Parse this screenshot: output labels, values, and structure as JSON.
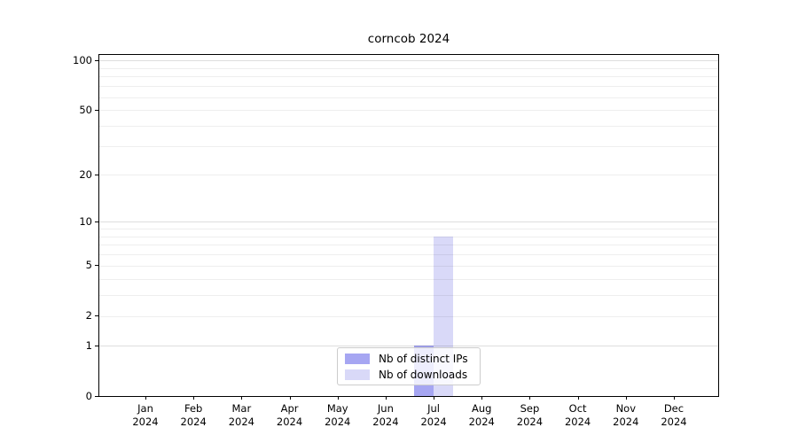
{
  "title": "corncob 2024",
  "chart_data": {
    "type": "bar",
    "categories": [
      "Jan 2024",
      "Feb 2024",
      "Mar 2024",
      "Apr 2024",
      "May 2024",
      "Jun 2024",
      "Jul 2024",
      "Aug 2024",
      "Sep 2024",
      "Oct 2024",
      "Nov 2024",
      "Dec 2024"
    ],
    "series": [
      {
        "name": "Nb of distinct IPs",
        "color": "#a6a6f2",
        "values": [
          0,
          0,
          0,
          0,
          0,
          0,
          1,
          0,
          0,
          0,
          0,
          0
        ]
      },
      {
        "name": "Nb of downloads",
        "color": "#d9d9f8",
        "values": [
          0,
          0,
          0,
          0,
          0,
          0,
          8,
          0,
          0,
          0,
          0,
          0
        ]
      }
    ],
    "yscale": "log1p",
    "ylim": [
      0,
      108
    ],
    "ytick_labels": [
      "0",
      "1",
      "2",
      "5",
      "10",
      "20",
      "50",
      "100"
    ],
    "ytick_values": [
      0,
      1,
      2,
      5,
      10,
      20,
      50,
      100
    ],
    "grid_minor_values": [
      2,
      3,
      4,
      5,
      6,
      7,
      8,
      9,
      20,
      30,
      40,
      50,
      60,
      70,
      80,
      90
    ],
    "grid_major_values": [
      1,
      10,
      100
    ],
    "grid": true,
    "legend_position": "lower center",
    "xlabel": "",
    "ylabel": ""
  },
  "colors": {
    "background": "#ffffff",
    "spine": "#000000",
    "legend_border": "#cccccc",
    "bar_distinct_ips": "#a6a6f2",
    "bar_downloads": "#d9d9f8"
  }
}
